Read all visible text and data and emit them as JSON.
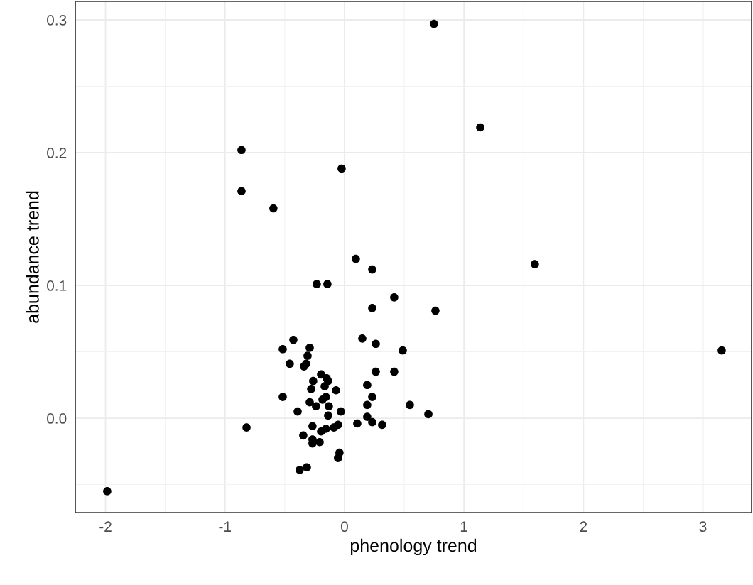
{
  "chart_data": {
    "type": "scatter",
    "xlabel": "phenology trend",
    "ylabel": "abundance trend",
    "x": [
      0.749,
      1.136,
      -0.862,
      -0.024,
      -0.862,
      -0.595,
      1.593,
      0.095,
      0.232,
      -0.232,
      -0.143,
      0.416,
      0.232,
      0.761,
      3.157,
      -0.428,
      0.149,
      -0.517,
      -0.291,
      0.262,
      0.488,
      -0.309,
      -0.458,
      -0.339,
      -0.321,
      0.262,
      0.416,
      -0.196,
      -0.149,
      -0.137,
      -0.262,
      -0.279,
      -0.166,
      -0.071,
      0.19,
      -0.517,
      0.232,
      -0.155,
      -0.184,
      -0.291,
      -0.238,
      -0.131,
      0.19,
      0.547,
      -0.392,
      -0.03,
      -0.137,
      0.702,
      0.19,
      0.232,
      0.107,
      0.315,
      -0.268,
      -0.054,
      -0.089,
      -0.155,
      -0.196,
      -0.82,
      -0.345,
      -0.268,
      -0.268,
      -0.208,
      -0.042,
      -0.054,
      -0.315,
      -0.375,
      -1.986
    ],
    "series": [
      {
        "color": "#000000",
        "values": [
          0.297,
          0.219,
          0.202,
          0.188,
          0.171,
          0.158,
          0.116,
          0.12,
          0.112,
          0.101,
          0.101,
          0.091,
          0.083,
          0.081,
          0.051,
          0.059,
          0.06,
          0.052,
          0.053,
          0.056,
          0.051,
          0.047,
          0.041,
          0.039,
          0.041,
          0.035,
          0.035,
          0.033,
          0.03,
          0.028,
          0.028,
          0.022,
          0.024,
          0.021,
          0.025,
          0.016,
          0.016,
          0.016,
          0.014,
          0.012,
          0.009,
          0.009,
          0.01,
          0.01,
          0.005,
          0.005,
          0.002,
          0.003,
          0.001,
          -0.003,
          -0.004,
          -0.005,
          -0.006,
          -0.005,
          -0.007,
          -0.008,
          -0.01,
          -0.007,
          -0.013,
          -0.016,
          -0.019,
          -0.018,
          -0.026,
          -0.03,
          -0.037,
          -0.039,
          -0.055
        ]
      }
    ],
    "xlim": [
      -2.253,
      3.407
    ],
    "ylim": [
      -0.0711,
      0.3139
    ],
    "xticks": [
      -2,
      -1,
      0,
      1,
      2,
      3
    ],
    "yticks": [
      {
        "value": 0,
        "label": "0.0"
      },
      0.1,
      0.2,
      0.3
    ],
    "grid": true,
    "marker": "circle",
    "legend": false
  }
}
